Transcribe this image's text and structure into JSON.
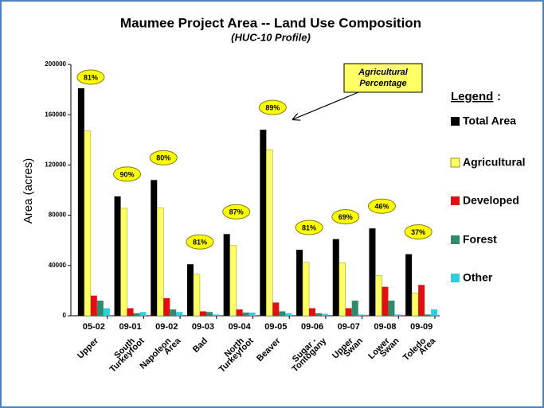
{
  "chart_data": {
    "type": "bar",
    "title": "Maumee Project Area -- Land Use Composition",
    "subtitle": "(HUC-10 Profile)",
    "y_label": "Area (acres)",
    "legend_title": "Legend",
    "callout": "Agricultural Percentage",
    "categories": [
      "05-02",
      "09-01",
      "09-02",
      "09-03",
      "09-04",
      "09-05",
      "09-06",
      "09-07",
      "09-08",
      "09-09"
    ],
    "category_names": [
      [
        "Upper"
      ],
      [
        "South",
        "Turkeyfoot"
      ],
      [
        "Napoleon",
        "Area"
      ],
      [
        "Bad"
      ],
      [
        "North",
        "Turkeyfoot"
      ],
      [
        "Beaver"
      ],
      [
        "Sugar -",
        "Tontogany"
      ],
      [
        "Upper",
        "Swan"
      ],
      [
        "Lower",
        "Swan"
      ],
      [
        "Toledo",
        "Area"
      ]
    ],
    "series": [
      {
        "name": "Total Area",
        "color": "#000000",
        "values": [
          181000,
          95000,
          108000,
          41000,
          65000,
          148000,
          52500,
          61000,
          69500,
          49000
        ]
      },
      {
        "name": "Agricultural",
        "color": "#ffff66",
        "values": [
          147000,
          85500,
          86000,
          33000,
          56000,
          132000,
          42500,
          42000,
          32000,
          18000
        ]
      },
      {
        "name": "Developed",
        "color": "#e01010",
        "values": [
          16000,
          6000,
          14000,
          3500,
          5000,
          10500,
          6000,
          6000,
          23000,
          24500
        ]
      },
      {
        "name": "Forest",
        "color": "#2e8b6e",
        "values": [
          12000,
          2000,
          5000,
          3000,
          2500,
          3500,
          2000,
          12000,
          12000,
          1000
        ]
      },
      {
        "name": "Other",
        "color": "#33ccdd",
        "values": [
          6000,
          3000,
          3000,
          1000,
          2500,
          2000,
          1500,
          1000,
          1000,
          5000
        ]
      }
    ],
    "agricultural_percentage": {
      "values": [
        81,
        90,
        80,
        81,
        87,
        89,
        81,
        69,
        46,
        37
      ],
      "value_labels": [
        "81%",
        "90%",
        "80%",
        "81%",
        "87%",
        "89%",
        "81%",
        "69%",
        "46%",
        "37%"
      ]
    },
    "ylim": [
      0,
      200000
    ],
    "yticks": [
      0,
      40000,
      80000,
      120000,
      160000,
      200000
    ]
  }
}
